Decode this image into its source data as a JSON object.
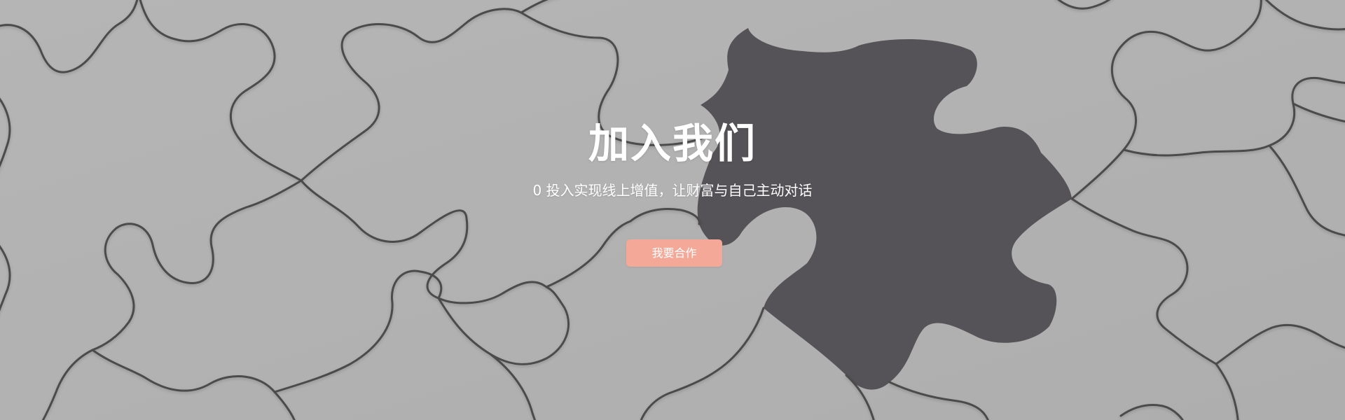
{
  "hero": {
    "title": "加入我们",
    "subtitle": "0 投入实现线上增值，让财富与自己主动对话",
    "cta_label": "我要合作",
    "colors": {
      "background": "#b1b1b1",
      "missing_piece": "#555357",
      "puzzle_seam": "#4a4a4a",
      "cta_fill": "#f3a898",
      "text": "#ffffff"
    },
    "illustration": "puzzle-pieces-with-missing-piece"
  }
}
